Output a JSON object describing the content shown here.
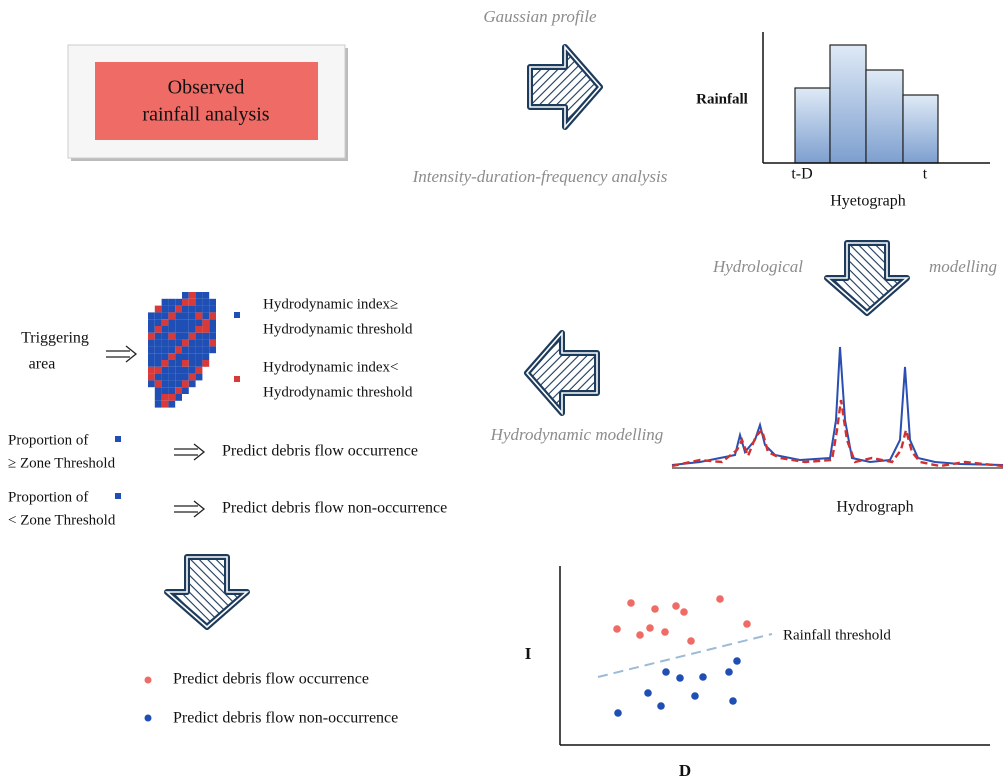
{
  "observed_box": {
    "label_lines": [
      "Observed",
      "rainfall analysis"
    ]
  },
  "process_labels": {
    "gaussian": "Gaussian profile",
    "idf": "Intensity-duration-frequency analysis",
    "hydrological": [
      "Hydrological",
      "modelling"
    ],
    "hydrodynamic": "Hydrodynamic modelling"
  },
  "hyetograph": {
    "y_label": "Rainfall",
    "x_labels": [
      "t-D",
      "t"
    ],
    "caption": "Hyetograph"
  },
  "hydrograph": {
    "caption": "Hydrograph"
  },
  "triggering_area": {
    "label_lines": [
      "Triggering",
      "area"
    ],
    "legend": [
      {
        "lines": [
          "Hydrodynamic index≥",
          "Hydrodynamic threshold"
        ]
      },
      {
        "lines": [
          "Hydrodynamic index<",
          "Hydrodynamic threshold"
        ]
      }
    ]
  },
  "zone_rules": [
    {
      "lines": [
        "Proportion of",
        "≥ Zone Threshold"
      ],
      "result": "Predict debris flow occurrence"
    },
    {
      "lines": [
        "Proportion of",
        "< Zone Threshold"
      ],
      "result": "Predict debris flow non-occurrence"
    }
  ],
  "scatter": {
    "y_label": "I",
    "x_label": "D",
    "threshold_label": "Rainfall threshold",
    "legend": [
      "Predict debris flow occurrence",
      "Predict debris flow non-occurrence"
    ]
  }
}
